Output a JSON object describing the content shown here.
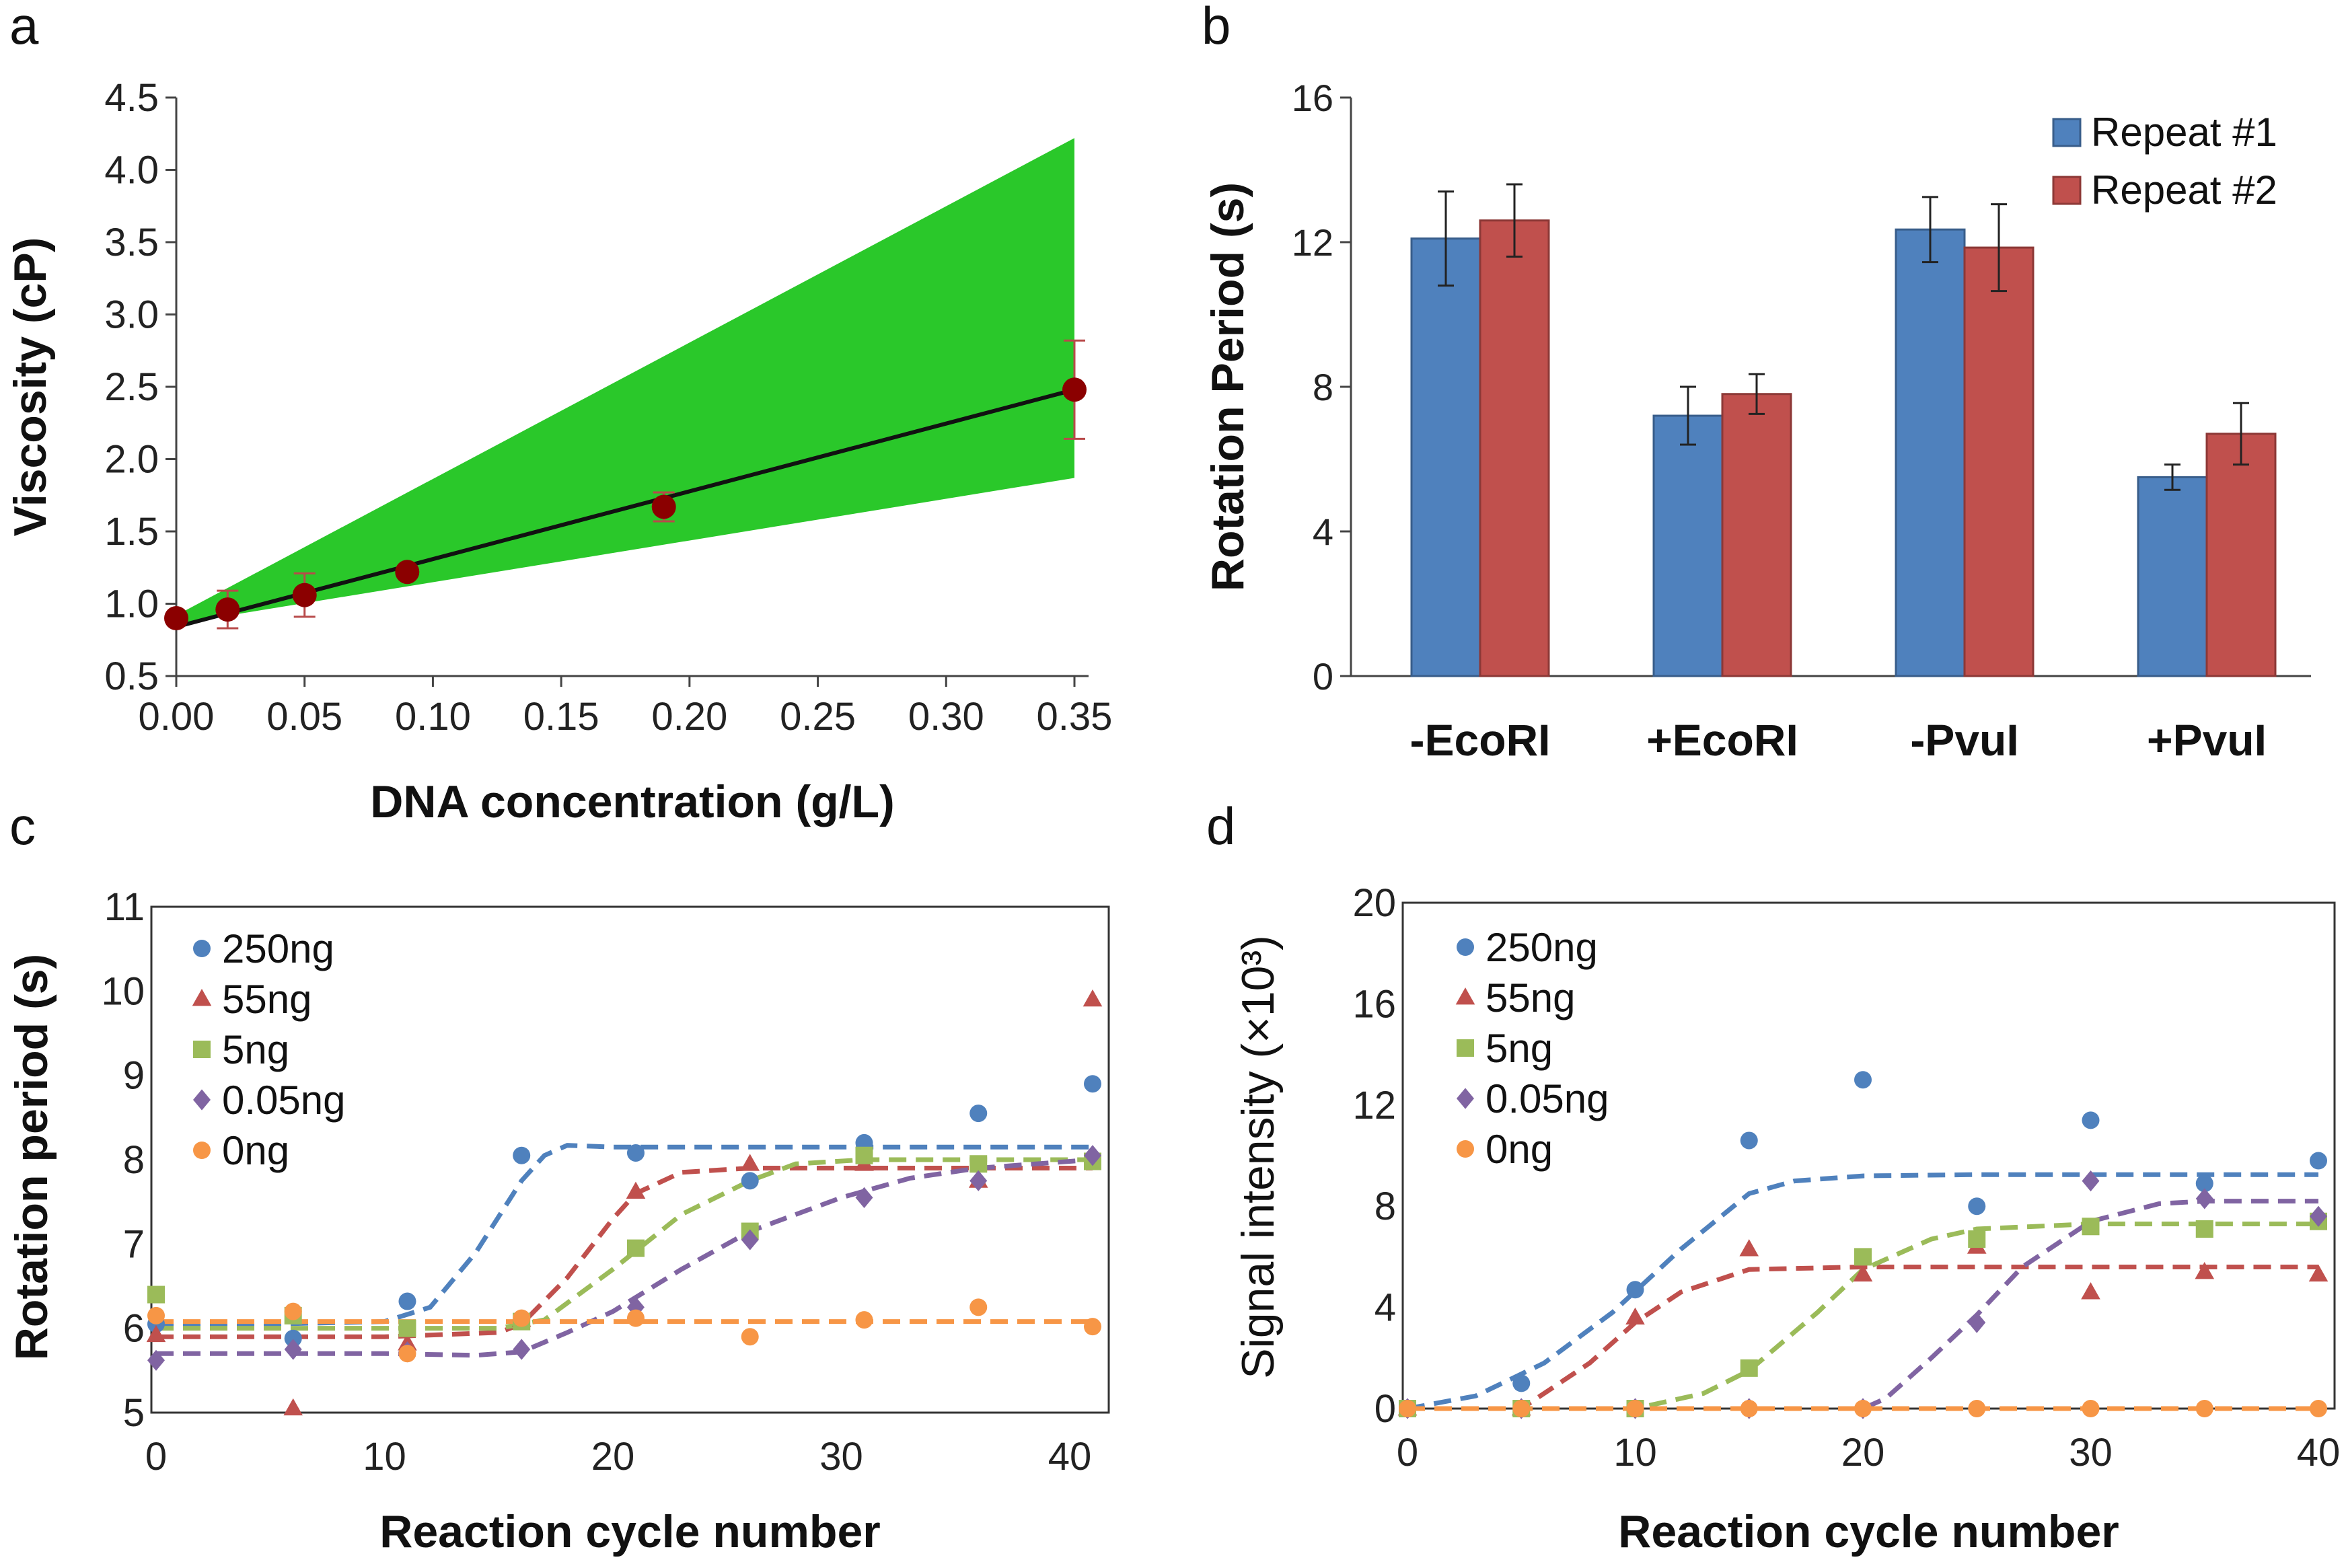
{
  "chart_data": [
    {
      "panel": "a",
      "type": "scatter",
      "xlabel": "DNA concentration (g/L)",
      "ylabel": "Viscosity (cP)",
      "xlim": [
        0,
        0.35
      ],
      "ylim": [
        0.5,
        4.5
      ],
      "xticks": [
        "0.00",
        "0.05",
        "0.10",
        "0.15",
        "0.20",
        "0.25",
        "0.30",
        "0.35"
      ],
      "yticks": [
        "0.5",
        "1.0",
        "1.5",
        "2.0",
        "2.5",
        "3.0",
        "3.5",
        "4.0",
        "4.5"
      ],
      "points": [
        {
          "x": 0.0,
          "y": 0.9,
          "err": 0.0
        },
        {
          "x": 0.02,
          "y": 0.96,
          "err": 0.13
        },
        {
          "x": 0.05,
          "y": 1.06,
          "err": 0.15
        },
        {
          "x": 0.09,
          "y": 1.22,
          "err": 0.0
        },
        {
          "x": 0.19,
          "y": 1.67,
          "err": 0.1
        },
        {
          "x": 0.35,
          "y": 2.48,
          "err": 0.34
        }
      ],
      "fit_line": {
        "x": [
          0.0,
          0.35
        ],
        "y": [
          0.84,
          2.48
        ]
      },
      "confidence_band": {
        "x": [
          0.0,
          0.35
        ],
        "upper": [
          0.92,
          4.22
        ],
        "lower": [
          0.86,
          1.87
        ]
      },
      "colors": {
        "band": "#2ac82a",
        "point": "#8b0000",
        "line": "#111111",
        "errorbar": "#b84a4a"
      }
    },
    {
      "panel": "b",
      "type": "bar",
      "ylabel": "Rotation Period (s)",
      "ylim": [
        0,
        16
      ],
      "yticks": [
        "0",
        "4",
        "8",
        "12",
        "16"
      ],
      "categories": [
        "-EcoRI",
        "+EcoRI",
        "-PvuI",
        "+PvuI"
      ],
      "series": [
        {
          "name": "Repeat #1",
          "color": "#4f81bd",
          "edge": "#385d8a",
          "values": [
            12.1,
            7.2,
            12.35,
            5.5
          ],
          "errors": [
            1.3,
            0.8,
            0.9,
            0.35
          ]
        },
        {
          "name": "Repeat #2",
          "color": "#c0504d",
          "edge": "#8c3836",
          "values": [
            12.6,
            7.8,
            11.85,
            6.7
          ],
          "errors": [
            1.0,
            0.55,
            1.2,
            0.85
          ]
        }
      ],
      "legend_position": "top-right"
    },
    {
      "panel": "c",
      "type": "scatter",
      "xlabel": "Reaction cycle number",
      "ylabel": "Rotation period (s)",
      "xlim": [
        0,
        41
      ],
      "ylim": [
        5,
        11
      ],
      "xticks": [
        "0",
        "10",
        "20",
        "30",
        "40"
      ],
      "yticks": [
        "5",
        "6",
        "7",
        "8",
        "9",
        "10",
        "11"
      ],
      "legend_position": "top-left",
      "series": [
        {
          "name": "250ng",
          "marker": "circle",
          "color": "#4f81bd",
          "x": [
            0,
            6,
            11,
            16,
            21,
            26,
            31,
            36,
            41
          ],
          "y": [
            6.05,
            5.88,
            6.32,
            8.05,
            8.08,
            7.75,
            8.2,
            8.55,
            8.9
          ],
          "fit_x": [
            0,
            5,
            10,
            12,
            14,
            16,
            17,
            18,
            20,
            25,
            30,
            35,
            41
          ],
          "fit_y": [
            6.05,
            6.05,
            6.08,
            6.25,
            6.9,
            7.75,
            8.05,
            8.17,
            8.15,
            8.15,
            8.15,
            8.15,
            8.15
          ]
        },
        {
          "name": "55ng",
          "marker": "triangle",
          "color": "#c0504d",
          "x": [
            0,
            6,
            11,
            16,
            21,
            26,
            31,
            36,
            41
          ],
          "y": [
            5.92,
            5.05,
            5.82,
            6.1,
            7.62,
            7.95,
            7.95,
            7.75,
            9.9
          ],
          "fit_x": [
            0,
            10,
            15,
            16,
            18,
            20,
            21,
            23,
            26,
            30,
            35,
            41
          ],
          "fit_y": [
            5.9,
            5.9,
            5.95,
            6.05,
            6.6,
            7.3,
            7.6,
            7.85,
            7.9,
            7.9,
            7.9,
            7.9
          ]
        },
        {
          "name": "5ng",
          "marker": "square",
          "color": "#9bbb59",
          "x": [
            0,
            6,
            11,
            16,
            21,
            26,
            31,
            36,
            41
          ],
          "y": [
            6.4,
            6.15,
            6.0,
            6.08,
            6.95,
            7.15,
            8.05,
            7.95,
            7.98
          ],
          "fit_x": [
            0,
            10,
            15,
            17,
            20,
            23,
            26,
            28,
            31,
            35,
            41
          ],
          "fit_y": [
            6.0,
            6.0,
            6.0,
            6.1,
            6.7,
            7.35,
            7.75,
            7.95,
            8.0,
            8.0,
            8.0
          ]
        },
        {
          "name": "0.05ng",
          "marker": "diamond",
          "color": "#8064a2",
          "x": [
            0,
            6,
            11,
            16,
            21,
            26,
            31,
            36,
            41
          ],
          "y": [
            5.62,
            5.75,
            5.72,
            5.75,
            6.25,
            7.05,
            7.55,
            7.75,
            8.05
          ],
          "fit_x": [
            0,
            10,
            14,
            16,
            18,
            20,
            23,
            26,
            30,
            33,
            36,
            41
          ],
          "fit_y": [
            5.7,
            5.7,
            5.68,
            5.72,
            5.95,
            6.2,
            6.7,
            7.15,
            7.55,
            7.78,
            7.9,
            8.0
          ]
        },
        {
          "name": "0ng",
          "marker": "circle",
          "color": "#f79646",
          "x": [
            0,
            6,
            11,
            16,
            21,
            26,
            31,
            36,
            41
          ],
          "y": [
            6.15,
            6.2,
            5.7,
            6.12,
            6.12,
            5.9,
            6.1,
            6.25,
            6.02
          ],
          "fit_x": [
            0,
            41
          ],
          "fit_y": [
            6.08,
            6.08
          ]
        }
      ]
    },
    {
      "panel": "d",
      "type": "scatter",
      "xlabel": "Reaction cycle number",
      "ylabel": "Signal intensity (×10³)",
      "xlim": [
        0,
        40
      ],
      "ylim": [
        0,
        20
      ],
      "xticks": [
        "0",
        "10",
        "20",
        "30",
        "40"
      ],
      "yticks": [
        "0",
        "4",
        "8",
        "12",
        "16",
        "20"
      ],
      "legend_position": "top-left",
      "series": [
        {
          "name": "250ng",
          "marker": "circle",
          "color": "#4f81bd",
          "x": [
            0,
            5,
            10,
            15,
            20,
            25,
            30,
            35,
            40
          ],
          "y": [
            0,
            1.0,
            4.7,
            10.6,
            13.0,
            8.0,
            11.4,
            8.9,
            9.8
          ],
          "fit_x": [
            0,
            3,
            6,
            9,
            12,
            15,
            17,
            20,
            25,
            30,
            35,
            40
          ],
          "fit_y": [
            0,
            0.5,
            1.8,
            3.8,
            6.3,
            8.5,
            9.0,
            9.2,
            9.25,
            9.25,
            9.25,
            9.25
          ]
        },
        {
          "name": "55ng",
          "marker": "triangle",
          "color": "#c0504d",
          "x": [
            0,
            5,
            10,
            15,
            20,
            25,
            30,
            35,
            40
          ],
          "y": [
            0,
            0,
            3.6,
            6.3,
            5.3,
            6.4,
            4.6,
            5.4,
            5.3
          ],
          "fit_x": [
            0,
            5,
            8,
            10,
            12,
            15,
            20,
            25,
            30,
            35,
            40
          ],
          "fit_y": [
            0,
            0,
            1.8,
            3.4,
            4.6,
            5.5,
            5.6,
            5.6,
            5.6,
            5.6,
            5.6
          ]
        },
        {
          "name": "5ng",
          "marker": "square",
          "color": "#9bbb59",
          "x": [
            0,
            5,
            10,
            15,
            20,
            25,
            30,
            35,
            40
          ],
          "y": [
            0,
            0,
            0,
            1.6,
            6.0,
            6.7,
            7.2,
            7.1,
            7.4
          ],
          "fit_x": [
            0,
            10,
            13,
            15,
            18,
            20,
            23,
            25,
            30,
            35,
            40
          ],
          "fit_y": [
            0,
            0,
            0.6,
            1.5,
            3.8,
            5.5,
            6.7,
            7.1,
            7.3,
            7.3,
            7.3
          ]
        },
        {
          "name": "0.05ng",
          "marker": "diamond",
          "color": "#8064a2",
          "x": [
            0,
            5,
            10,
            15,
            20,
            25,
            30,
            35,
            40
          ],
          "y": [
            0,
            0,
            0,
            0,
            0,
            3.4,
            9.0,
            8.3,
            7.6
          ],
          "fit_x": [
            0,
            20,
            21,
            23,
            25,
            27,
            30,
            33,
            35,
            40
          ],
          "fit_y": [
            0,
            0,
            0.4,
            2.0,
            3.7,
            5.6,
            7.4,
            8.1,
            8.2,
            8.2
          ]
        },
        {
          "name": "0ng",
          "marker": "circle",
          "color": "#f79646",
          "x": [
            0,
            5,
            10,
            15,
            20,
            25,
            30,
            35,
            40
          ],
          "y": [
            0,
            0,
            0,
            0,
            0,
            0,
            0,
            0,
            0
          ],
          "fit_x": [
            0,
            40
          ],
          "fit_y": [
            0,
            0
          ]
        }
      ]
    }
  ]
}
